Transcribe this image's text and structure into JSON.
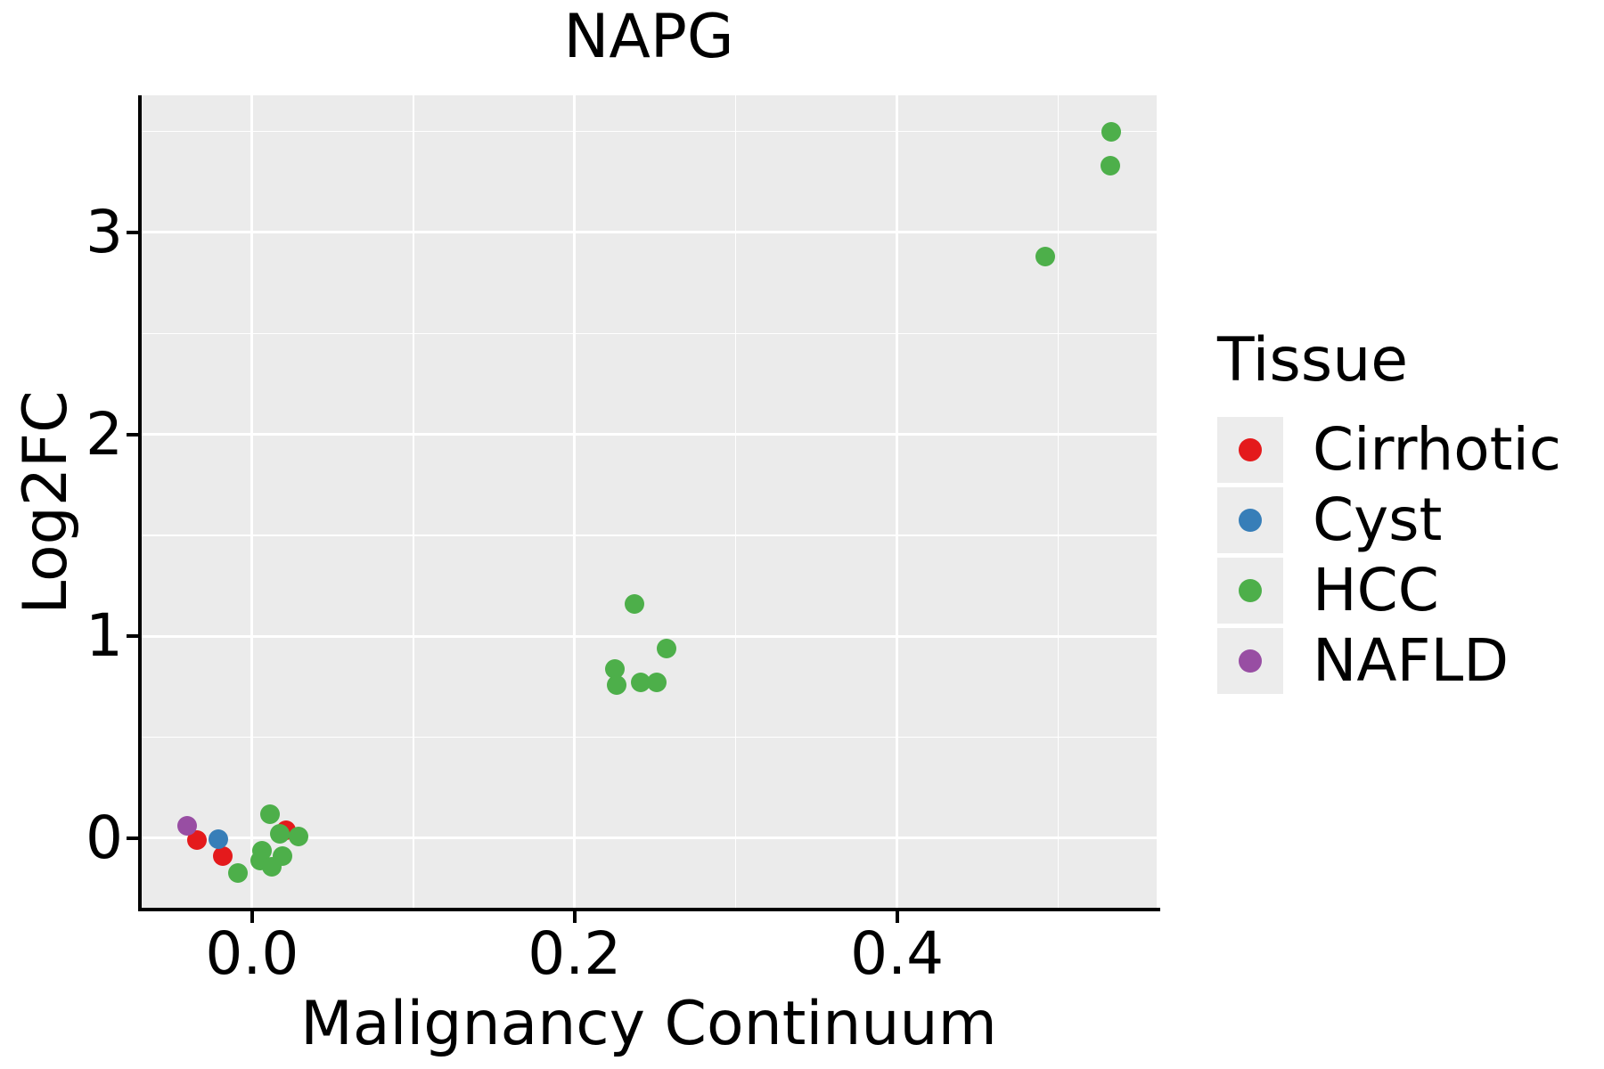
{
  "chart_data": {
    "type": "scatter",
    "title": "NAPG",
    "xlabel": "Malignancy Continuum",
    "ylabel": "Log2FC",
    "xlim": [
      -0.069,
      0.561
    ],
    "ylim": [
      -0.353,
      3.679
    ],
    "grid": "major+minor, white on gray panel",
    "panel_bg": "#EBEBEB",
    "grid_color": "#FFFFFF",
    "axis_color": "#000000",
    "point_radius_px": 11,
    "x_ticks": {
      "values": [
        0.0,
        0.2,
        0.4
      ],
      "labels": [
        "0.0",
        "0.2",
        "0.4"
      ],
      "minor": [
        0.1,
        0.3,
        0.5
      ]
    },
    "y_ticks": {
      "values": [
        0,
        1,
        2,
        3
      ],
      "labels": [
        "0",
        "1",
        "2",
        "3"
      ],
      "minor": [
        0.5,
        1.5,
        2.5,
        3.5
      ]
    },
    "legend": {
      "title": "Tissue",
      "position": "right",
      "entries": [
        {
          "label": "Cirrhotic",
          "color": "#E41A1C"
        },
        {
          "label": "Cyst",
          "color": "#377EB8"
        },
        {
          "label": "HCC",
          "color": "#4DAF4A"
        },
        {
          "label": "NAFLD",
          "color": "#984EA3"
        }
      ]
    },
    "series": [
      {
        "name": "Cirrhotic",
        "color": "#E41A1C",
        "points": [
          [
            -0.034,
            -0.01
          ],
          [
            -0.018,
            -0.09
          ],
          [
            0.021,
            0.04
          ]
        ]
      },
      {
        "name": "Cyst",
        "color": "#377EB8",
        "points": [
          [
            -0.021,
            -0.005
          ]
        ]
      },
      {
        "name": "HCC",
        "color": "#4DAF4A",
        "points": [
          [
            -0.009,
            -0.17
          ],
          [
            0.011,
            0.12
          ],
          [
            0.017,
            0.02
          ],
          [
            0.029,
            0.01
          ],
          [
            0.006,
            -0.06
          ],
          [
            0.005,
            -0.11
          ],
          [
            0.019,
            -0.09
          ],
          [
            0.012,
            -0.14
          ],
          [
            0.237,
            1.16
          ],
          [
            0.257,
            0.94
          ],
          [
            0.225,
            0.84
          ],
          [
            0.226,
            0.76
          ],
          [
            0.241,
            0.77
          ],
          [
            0.251,
            0.77
          ],
          [
            0.492,
            2.88
          ],
          [
            0.532,
            3.33
          ],
          [
            0.533,
            3.5
          ]
        ]
      },
      {
        "name": "NAFLD",
        "color": "#984EA3",
        "points": [
          [
            -0.04,
            0.06
          ]
        ]
      }
    ]
  }
}
